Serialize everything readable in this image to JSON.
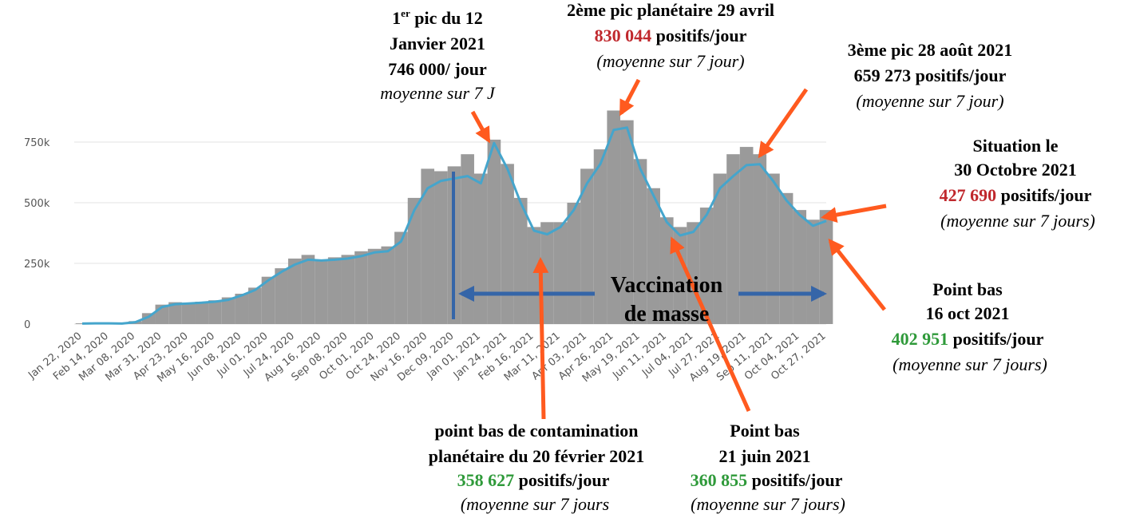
{
  "chart_data": {
    "type": "bar",
    "categories": [
      "Jan 22, 2020",
      null,
      "Feb 14, 2020",
      null,
      "Mar 08, 2020",
      null,
      "Mar 31, 2020",
      null,
      "Apr 23, 2020",
      null,
      "May 16, 2020",
      null,
      "Jun 08, 2020",
      null,
      "Jul 01, 2020",
      null,
      "Jul 24, 2020",
      null,
      "Aug 16, 2020",
      null,
      "Sep 08, 2020",
      null,
      "Oct 01, 2020",
      null,
      "Oct 24, 2020",
      null,
      "Nov 16, 2020",
      null,
      "Dec 09, 2020",
      null,
      "Jan 01, 2021",
      null,
      "Jan 24, 2021",
      null,
      "Feb 16, 2021",
      null,
      "Mar 11, 2021",
      null,
      "Apr 03, 2021",
      null,
      "Apr 26, 2021",
      null,
      "May 19, 2021",
      null,
      "Jun 11, 2021",
      null,
      "Jul 04, 2021",
      null,
      "Jul 27, 2021",
      null,
      "Aug 19, 2021",
      null,
      "Sep 11, 2021",
      null,
      "Oct 04, 2021",
      null,
      "Oct 27, 2021"
    ],
    "series": [
      {
        "kind": "bar",
        "color": "#9a9a9a",
        "values": [
          3000,
          4000,
          3000,
          3000,
          12000,
          45000,
          80000,
          90000,
          88000,
          92000,
          98000,
          110000,
          125000,
          150000,
          195000,
          230000,
          270000,
          285000,
          265000,
          275000,
          285000,
          300000,
          310000,
          320000,
          380000,
          520000,
          640000,
          630000,
          650000,
          700000,
          620000,
          760000,
          660000,
          520000,
          400000,
          420000,
          420000,
          500000,
          640000,
          720000,
          880000,
          840000,
          680000,
          560000,
          440000,
          400000,
          420000,
          480000,
          620000,
          700000,
          730000,
          700000,
          620000,
          540000,
          470000,
          430000,
          470000
        ]
      },
      {
        "kind": "line",
        "color": "#45a5cc",
        "values": [
          2000,
          3000,
          3000,
          2000,
          8000,
          30000,
          70000,
          82000,
          85000,
          88000,
          92000,
          100000,
          118000,
          140000,
          180000,
          215000,
          245000,
          265000,
          262000,
          265000,
          270000,
          280000,
          295000,
          300000,
          340000,
          470000,
          560000,
          590000,
          600000,
          610000,
          580000,
          746000,
          640000,
          500000,
          385000,
          370000,
          400000,
          470000,
          580000,
          660000,
          800000,
          810000,
          640000,
          530000,
          420000,
          365000,
          380000,
          450000,
          560000,
          610000,
          655000,
          659000,
          590000,
          510000,
          450000,
          405000,
          425000
        ]
      }
    ],
    "ylim": [
      0,
      900000
    ],
    "yticks": [
      0,
      {
        "value": 250000,
        "label": "250k"
      },
      {
        "value": 500000,
        "label": "500k"
      },
      {
        "value": 750000,
        "label": "750k"
      }
    ],
    "grid": true,
    "annotations": {
      "peak1": [
        "1",
        "er",
        " pic du 12",
        "Janvier 2021",
        "746 000/ jour",
        "moyenne sur 7 J"
      ],
      "peak2": [
        "2ème pic  planétaire  29 avril",
        "830 044",
        " positifs/jour",
        "(moyenne sur 7 jour)"
      ],
      "peak3": [
        "3ème pic 28 août 2021",
        "659 273 positifs/jour",
        "(moyenne sur 7 jour)"
      ],
      "now": [
        "Situation le",
        "30 Octobre 2021",
        "427 690",
        " positifs/jour",
        "(moyenne sur 7 jours)"
      ],
      "low_oct": [
        "Point bas",
        "16 oct 2021",
        "402 951",
        " positifs/jour",
        "(moyenne sur 7 jours)"
      ],
      "low_feb": [
        "point bas de contamination",
        "planétaire du 20 février 2021",
        "358 627",
        " positifs/jour",
        "(moyenne sur 7 jours"
      ],
      "low_jun": [
        "Point bas",
        "21 juin 2021",
        "360 855",
        " positifs/jour",
        "(moyenne sur 7 jours)"
      ],
      "vaccination": [
        "Vaccination",
        "de masse"
      ]
    }
  }
}
